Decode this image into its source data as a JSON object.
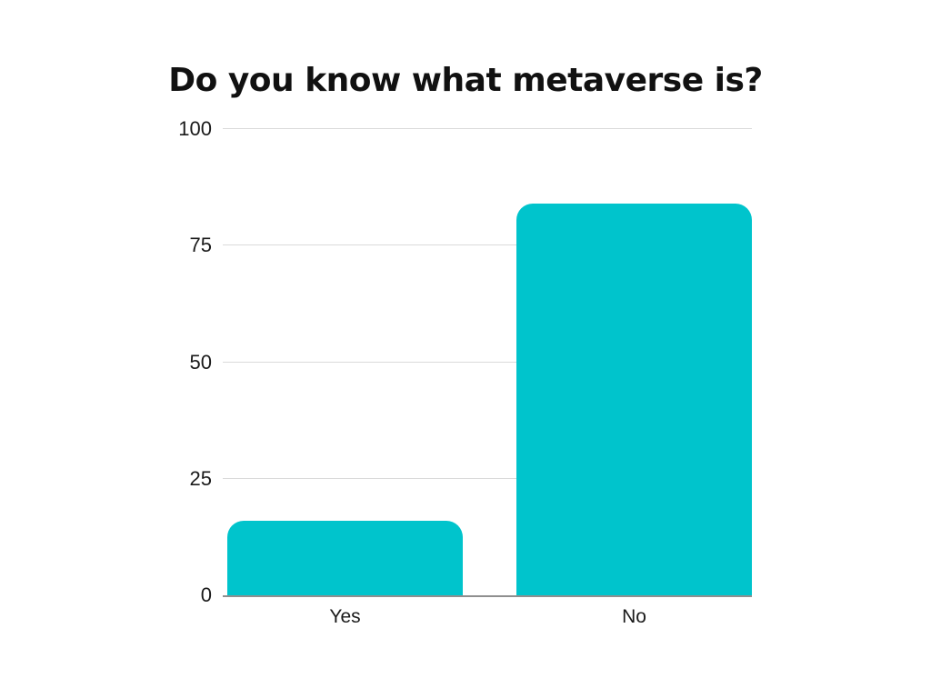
{
  "page": {
    "background": "#ffffff"
  },
  "chart_data": {
    "type": "bar",
    "title": "Do you know what metaverse is?",
    "categories": [
      "Yes",
      "No"
    ],
    "values": [
      16,
      84
    ],
    "xlabel": "",
    "ylabel": "",
    "ylim": [
      0,
      100
    ],
    "yticks": [
      0,
      25,
      50,
      75,
      100
    ],
    "grid": "horizontal-gridlines-on",
    "legend": "none",
    "colors": {
      "bar": "#00C4CC",
      "gridline": "#dadada",
      "axis_line": "#8f8f8f",
      "title_text": "#111111",
      "tick_text": "#1a1a1a"
    }
  }
}
